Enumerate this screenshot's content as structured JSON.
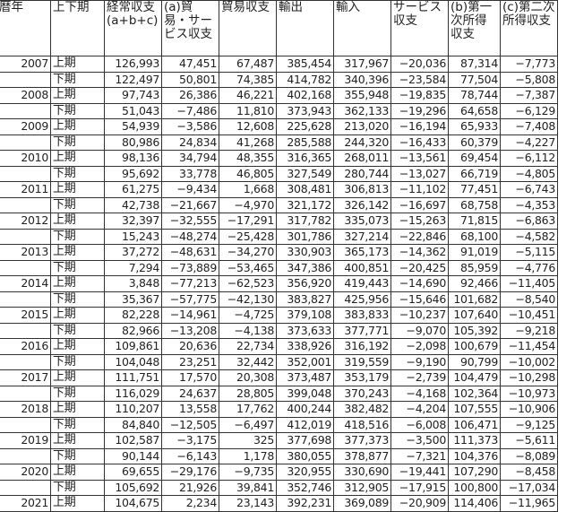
{
  "headers": [
    "暦年",
    "上下期",
    "経常収支(a+b+c)",
    "(a)貿易・サービス収支",
    "貿易収支",
    "輸出",
    "輸入",
    "サービス収支",
    "(b)第一次所得収支",
    "(c)第二次所得収支"
  ],
  "rows": [
    [
      "2007",
      "上期",
      "126,993",
      "47,451",
      "67,487",
      "385,454",
      "317,967",
      "−20,036",
      "87,314",
      "−7,773"
    ],
    [
      "",
      "下期",
      "122,497",
      "50,801",
      "74,385",
      "414,782",
      "340,396",
      "−23,584",
      "77,504",
      "−5,808"
    ],
    [
      "2008",
      "上期",
      "97,743",
      "26,386",
      "46,221",
      "402,168",
      "355,948",
      "−19,835",
      "78,744",
      "−7,387"
    ],
    [
      "",
      "下期",
      "51,043",
      "−7,486",
      "11,810",
      "373,943",
      "362,133",
      "−19,296",
      "64,658",
      "−6,129"
    ],
    [
      "2009",
      "上期",
      "54,939",
      "−3,586",
      "12,608",
      "225,628",
      "213,020",
      "−16,194",
      "65,933",
      "−7,408"
    ],
    [
      "",
      "下期",
      "80,986",
      "24,834",
      "41,268",
      "285,588",
      "244,320",
      "−16,433",
      "60,379",
      "−4,227"
    ],
    [
      "2010",
      "上期",
      "98,136",
      "34,794",
      "48,355",
      "316,365",
      "268,011",
      "−13,561",
      "69,454",
      "−6,112"
    ],
    [
      "",
      "下期",
      "95,692",
      "33,778",
      "46,805",
      "327,549",
      "280,744",
      "−13,027",
      "66,719",
      "−4,805"
    ],
    [
      "2011",
      "上期",
      "61,275",
      "−9,434",
      "1,668",
      "308,481",
      "306,813",
      "−11,102",
      "77,451",
      "−6,743"
    ],
    [
      "",
      "下期",
      "42,738",
      "−21,667",
      "−4,970",
      "321,172",
      "326,142",
      "−16,697",
      "68,758",
      "−4,353"
    ],
    [
      "2012",
      "上期",
      "32,397",
      "−32,555",
      "−17,291",
      "317,782",
      "335,073",
      "−15,263",
      "71,815",
      "−6,863"
    ],
    [
      "",
      "下期",
      "15,243",
      "−48,274",
      "−25,428",
      "301,786",
      "327,214",
      "−22,846",
      "68,100",
      "−4,582"
    ],
    [
      "2013",
      "上期",
      "37,272",
      "−48,631",
      "−34,270",
      "330,903",
      "365,173",
      "−14,362",
      "91,019",
      "−5,115"
    ],
    [
      "",
      "下期",
      "7,294",
      "−73,889",
      "−53,465",
      "347,386",
      "400,851",
      "−20,425",
      "85,959",
      "−4,776"
    ],
    [
      "2014",
      "上期",
      "3,848",
      "−77,213",
      "−62,523",
      "356,920",
      "419,443",
      "−14,690",
      "92,466",
      "−11,405"
    ],
    [
      "",
      "下期",
      "35,367",
      "−57,775",
      "−42,130",
      "383,827",
      "425,956",
      "−15,646",
      "101,682",
      "−8,540"
    ],
    [
      "2015",
      "上期",
      "82,228",
      "−14,961",
      "−4,725",
      "379,108",
      "383,833",
      "−10,237",
      "107,640",
      "−10,451"
    ],
    [
      "",
      "下期",
      "82,966",
      "−13,208",
      "−4,138",
      "373,633",
      "377,771",
      "−9,070",
      "105,392",
      "−9,218"
    ],
    [
      "2016",
      "上期",
      "109,861",
      "20,636",
      "22,734",
      "338,926",
      "316,192",
      "−2,098",
      "100,679",
      "−11,454"
    ],
    [
      "",
      "下期",
      "104,048",
      "23,251",
      "32,442",
      "352,001",
      "319,559",
      "−9,190",
      "90,799",
      "−10,002"
    ],
    [
      "2017",
      "上期",
      "111,751",
      "17,570",
      "20,308",
      "373,487",
      "353,179",
      "−2,739",
      "104,479",
      "−10,298"
    ],
    [
      "",
      "下期",
      "116,029",
      "24,637",
      "28,805",
      "399,048",
      "370,243",
      "−4,168",
      "102,364",
      "−10,973"
    ],
    [
      "2018",
      "上期",
      "110,207",
      "13,558",
      "17,762",
      "400,244",
      "382,482",
      "−4,204",
      "107,555",
      "−10,906"
    ],
    [
      "",
      "下期",
      "84,840",
      "−12,505",
      "−6,497",
      "412,019",
      "418,516",
      "−6,008",
      "106,471",
      "−9,125"
    ],
    [
      "2019",
      "上期",
      "102,587",
      "−3,175",
      "325",
      "377,698",
      "377,373",
      "−3,500",
      "111,373",
      "−5,611"
    ],
    [
      "",
      "下期",
      "90,144",
      "−6,143",
      "1,178",
      "380,055",
      "378,877",
      "−7,321",
      "104,376",
      "−8,089"
    ],
    [
      "2020",
      "上期",
      "69,655",
      "−29,176",
      "−9,735",
      "320,955",
      "330,690",
      "−19,441",
      "107,290",
      "−8,458"
    ],
    [
      "",
      "下期",
      "105,692",
      "21,926",
      "39,841",
      "352,746",
      "312,905",
      "−17,915",
      "100,800",
      "−17,034"
    ],
    [
      "2021",
      "上期",
      "104,675",
      "2,234",
      "23,143",
      "392,231",
      "369,089",
      "−20,909",
      "114,406",
      "−11,965"
    ]
  ]
}
